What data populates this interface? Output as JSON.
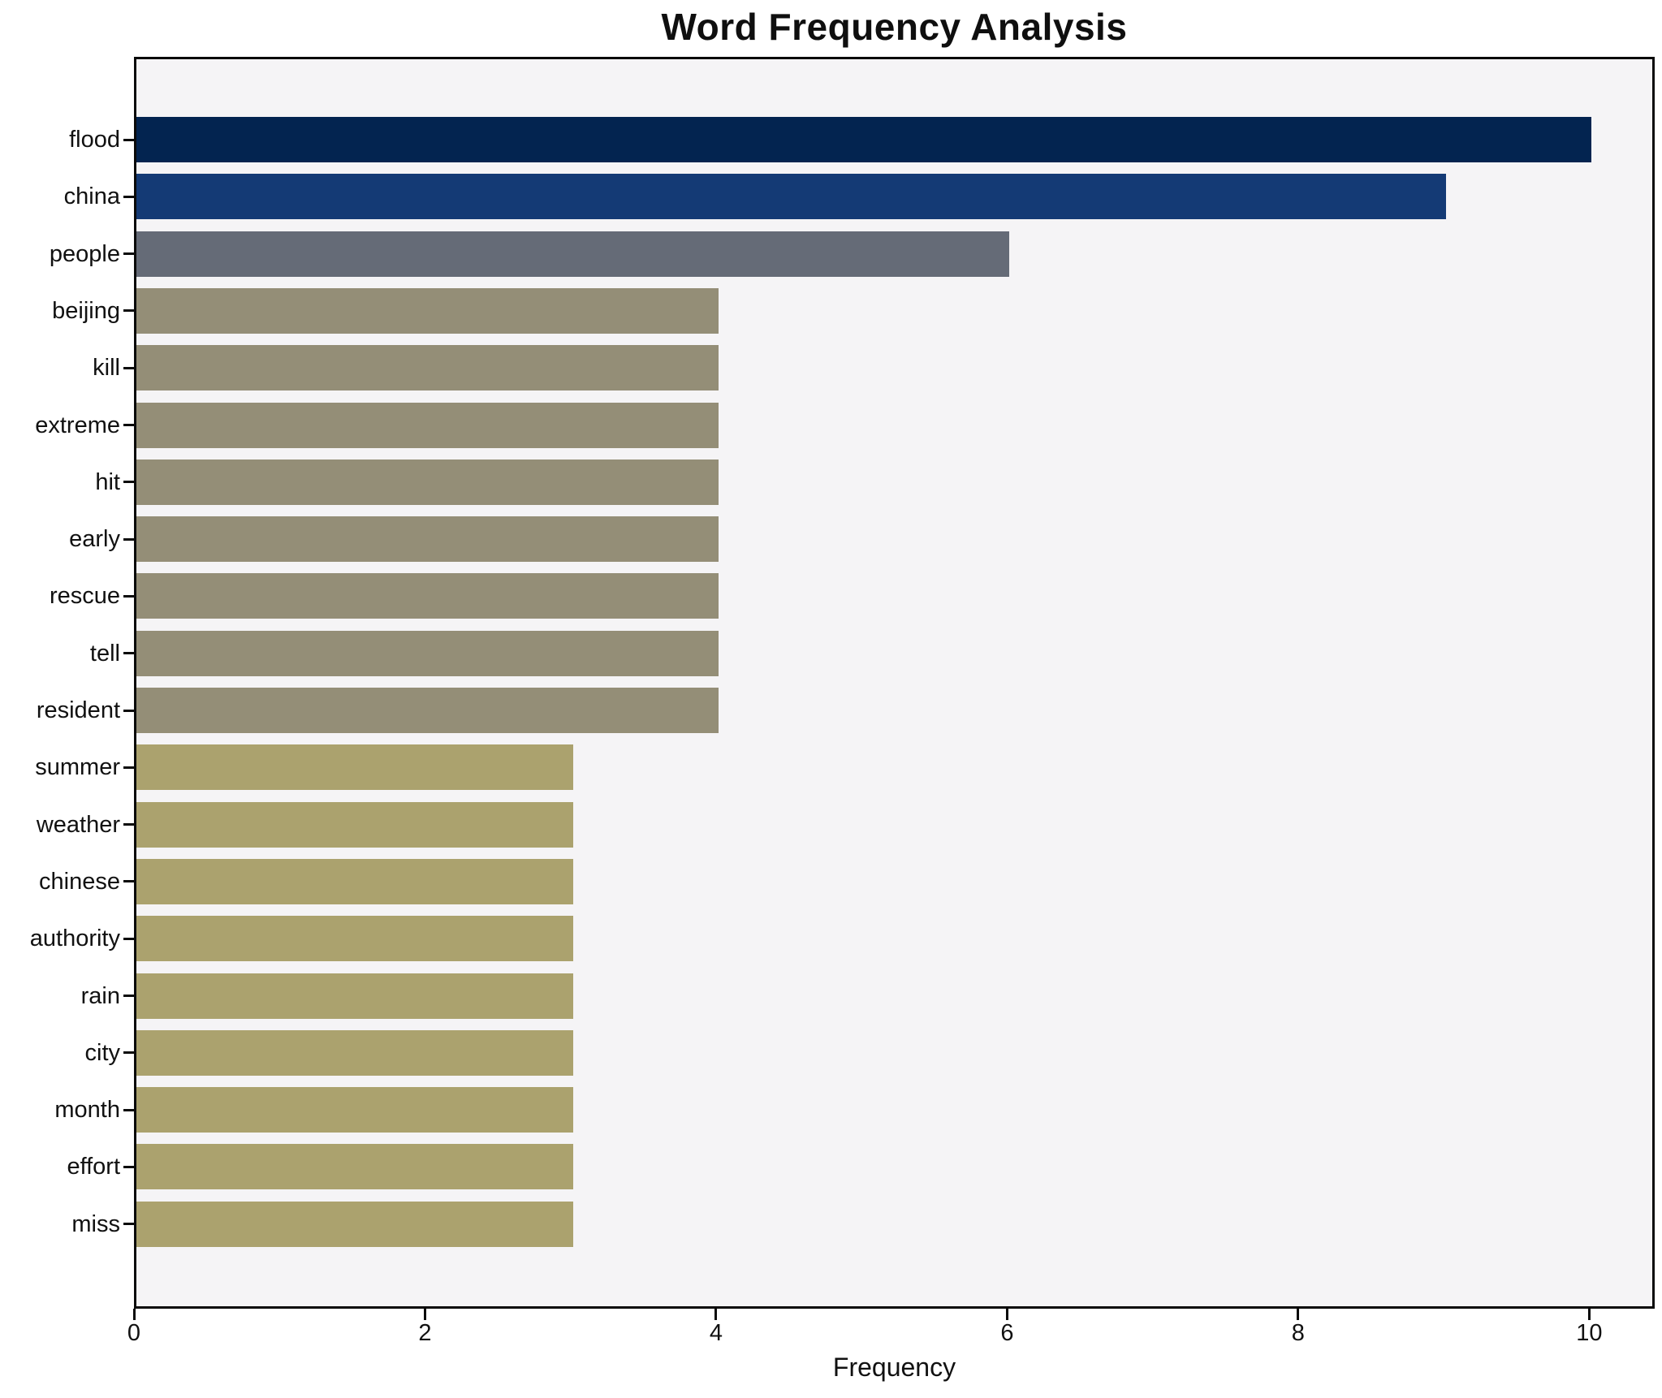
{
  "chart_data": {
    "type": "bar",
    "orientation": "horizontal",
    "title": "Word Frequency Analysis",
    "xlabel": "Frequency",
    "ylabel": "",
    "categories": [
      "flood",
      "china",
      "people",
      "beijing",
      "kill",
      "extreme",
      "hit",
      "early",
      "rescue",
      "tell",
      "resident",
      "summer",
      "weather",
      "chinese",
      "authority",
      "rain",
      "city",
      "month",
      "effort",
      "miss"
    ],
    "values": [
      10,
      9,
      6,
      4,
      4,
      4,
      4,
      4,
      4,
      4,
      4,
      3,
      3,
      3,
      3,
      3,
      3,
      3,
      3,
      3
    ],
    "xlim": [
      0,
      10.45
    ],
    "xticks": [
      0,
      2,
      4,
      6,
      8,
      10
    ],
    "grid": false,
    "legend_position": "none",
    "colors": {
      "palette": "cividis-by-value",
      "by_value": {
        "10": "#032450",
        "9": "#143a75",
        "6": "#656b77",
        "4": "#948e77",
        "3": "#aba26e"
      }
    },
    "plot_background": "#f5f4f6",
    "figure_background": "#ffffff",
    "spine_color": "#0a0a0a",
    "text_color": "#111111"
  }
}
